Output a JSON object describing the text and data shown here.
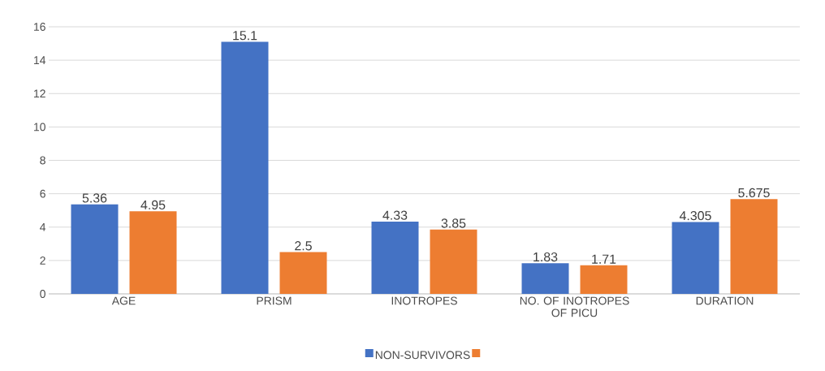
{
  "chart_data": {
    "type": "bar",
    "categories": [
      "AGE",
      "PRISM",
      "INOTROPES",
      "NO. OF INOTROPES OF PICU",
      "DURATION"
    ],
    "series": [
      {
        "name": "NON-SURVIVORS",
        "color": "#4472c4",
        "values": [
          5.36,
          15.1,
          4.33,
          1.83,
          4.305
        ]
      },
      {
        "color": "#ed7d31",
        "values": [
          4.95,
          2.5,
          3.85,
          1.71,
          5.675
        ]
      }
    ],
    "ylim": [
      0,
      16
    ],
    "yticks": [
      0,
      2,
      4,
      6,
      8,
      10,
      12,
      14,
      16
    ],
    "data_labels": true,
    "grid": "y",
    "legend": "bottom"
  }
}
